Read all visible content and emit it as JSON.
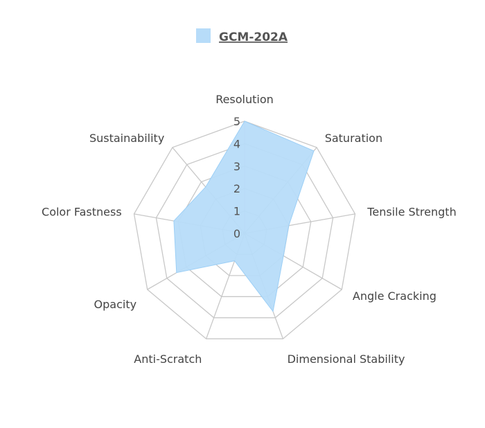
{
  "chart_data": {
    "type": "radar",
    "categories": [
      "Resolution",
      "Saturation",
      "Tensile Strength",
      "Angle Cracking",
      "Dimensional Stability",
      "Anti-Scratch",
      "Opacity",
      "Color Fastness",
      "Sustainability"
    ],
    "series": [
      {
        "name": "GCM-202A",
        "values": [
          5,
          4.8,
          2,
          2,
          3.7,
          1.3,
          3.5,
          3.2,
          2.7
        ],
        "color": "#b7dcf9"
      }
    ],
    "rlim": [
      0,
      5
    ],
    "ticks": [
      "0",
      "1",
      "2",
      "3",
      "4",
      "5"
    ],
    "legend_position": "top",
    "grid": true
  }
}
